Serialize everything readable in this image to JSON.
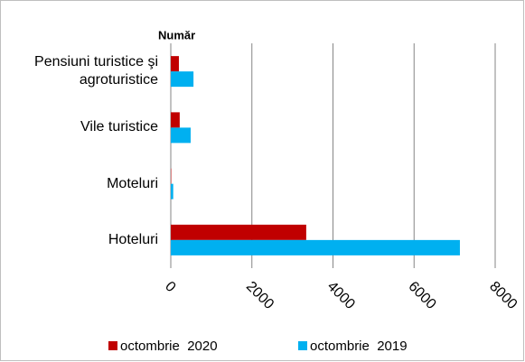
{
  "chart_data": {
    "type": "bar",
    "orientation": "horizontal",
    "title": "Număr",
    "categories": [
      "Pensiuni turistice şi agroturistice",
      "Vile turistice",
      "Moteluri",
      "Hoteluri"
    ],
    "series": [
      {
        "name": "octombrie  2020",
        "color": "#c00000",
        "values": [
          200,
          220,
          10,
          3340
        ]
      },
      {
        "name": "octombrie  2019",
        "color": "#00b0f0",
        "values": [
          560,
          490,
          60,
          7130
        ]
      }
    ],
    "xlim": [
      0,
      8000
    ],
    "xticks": [
      0,
      2000,
      4000,
      6000,
      8000
    ],
    "grid": true,
    "legend": "bottom"
  }
}
